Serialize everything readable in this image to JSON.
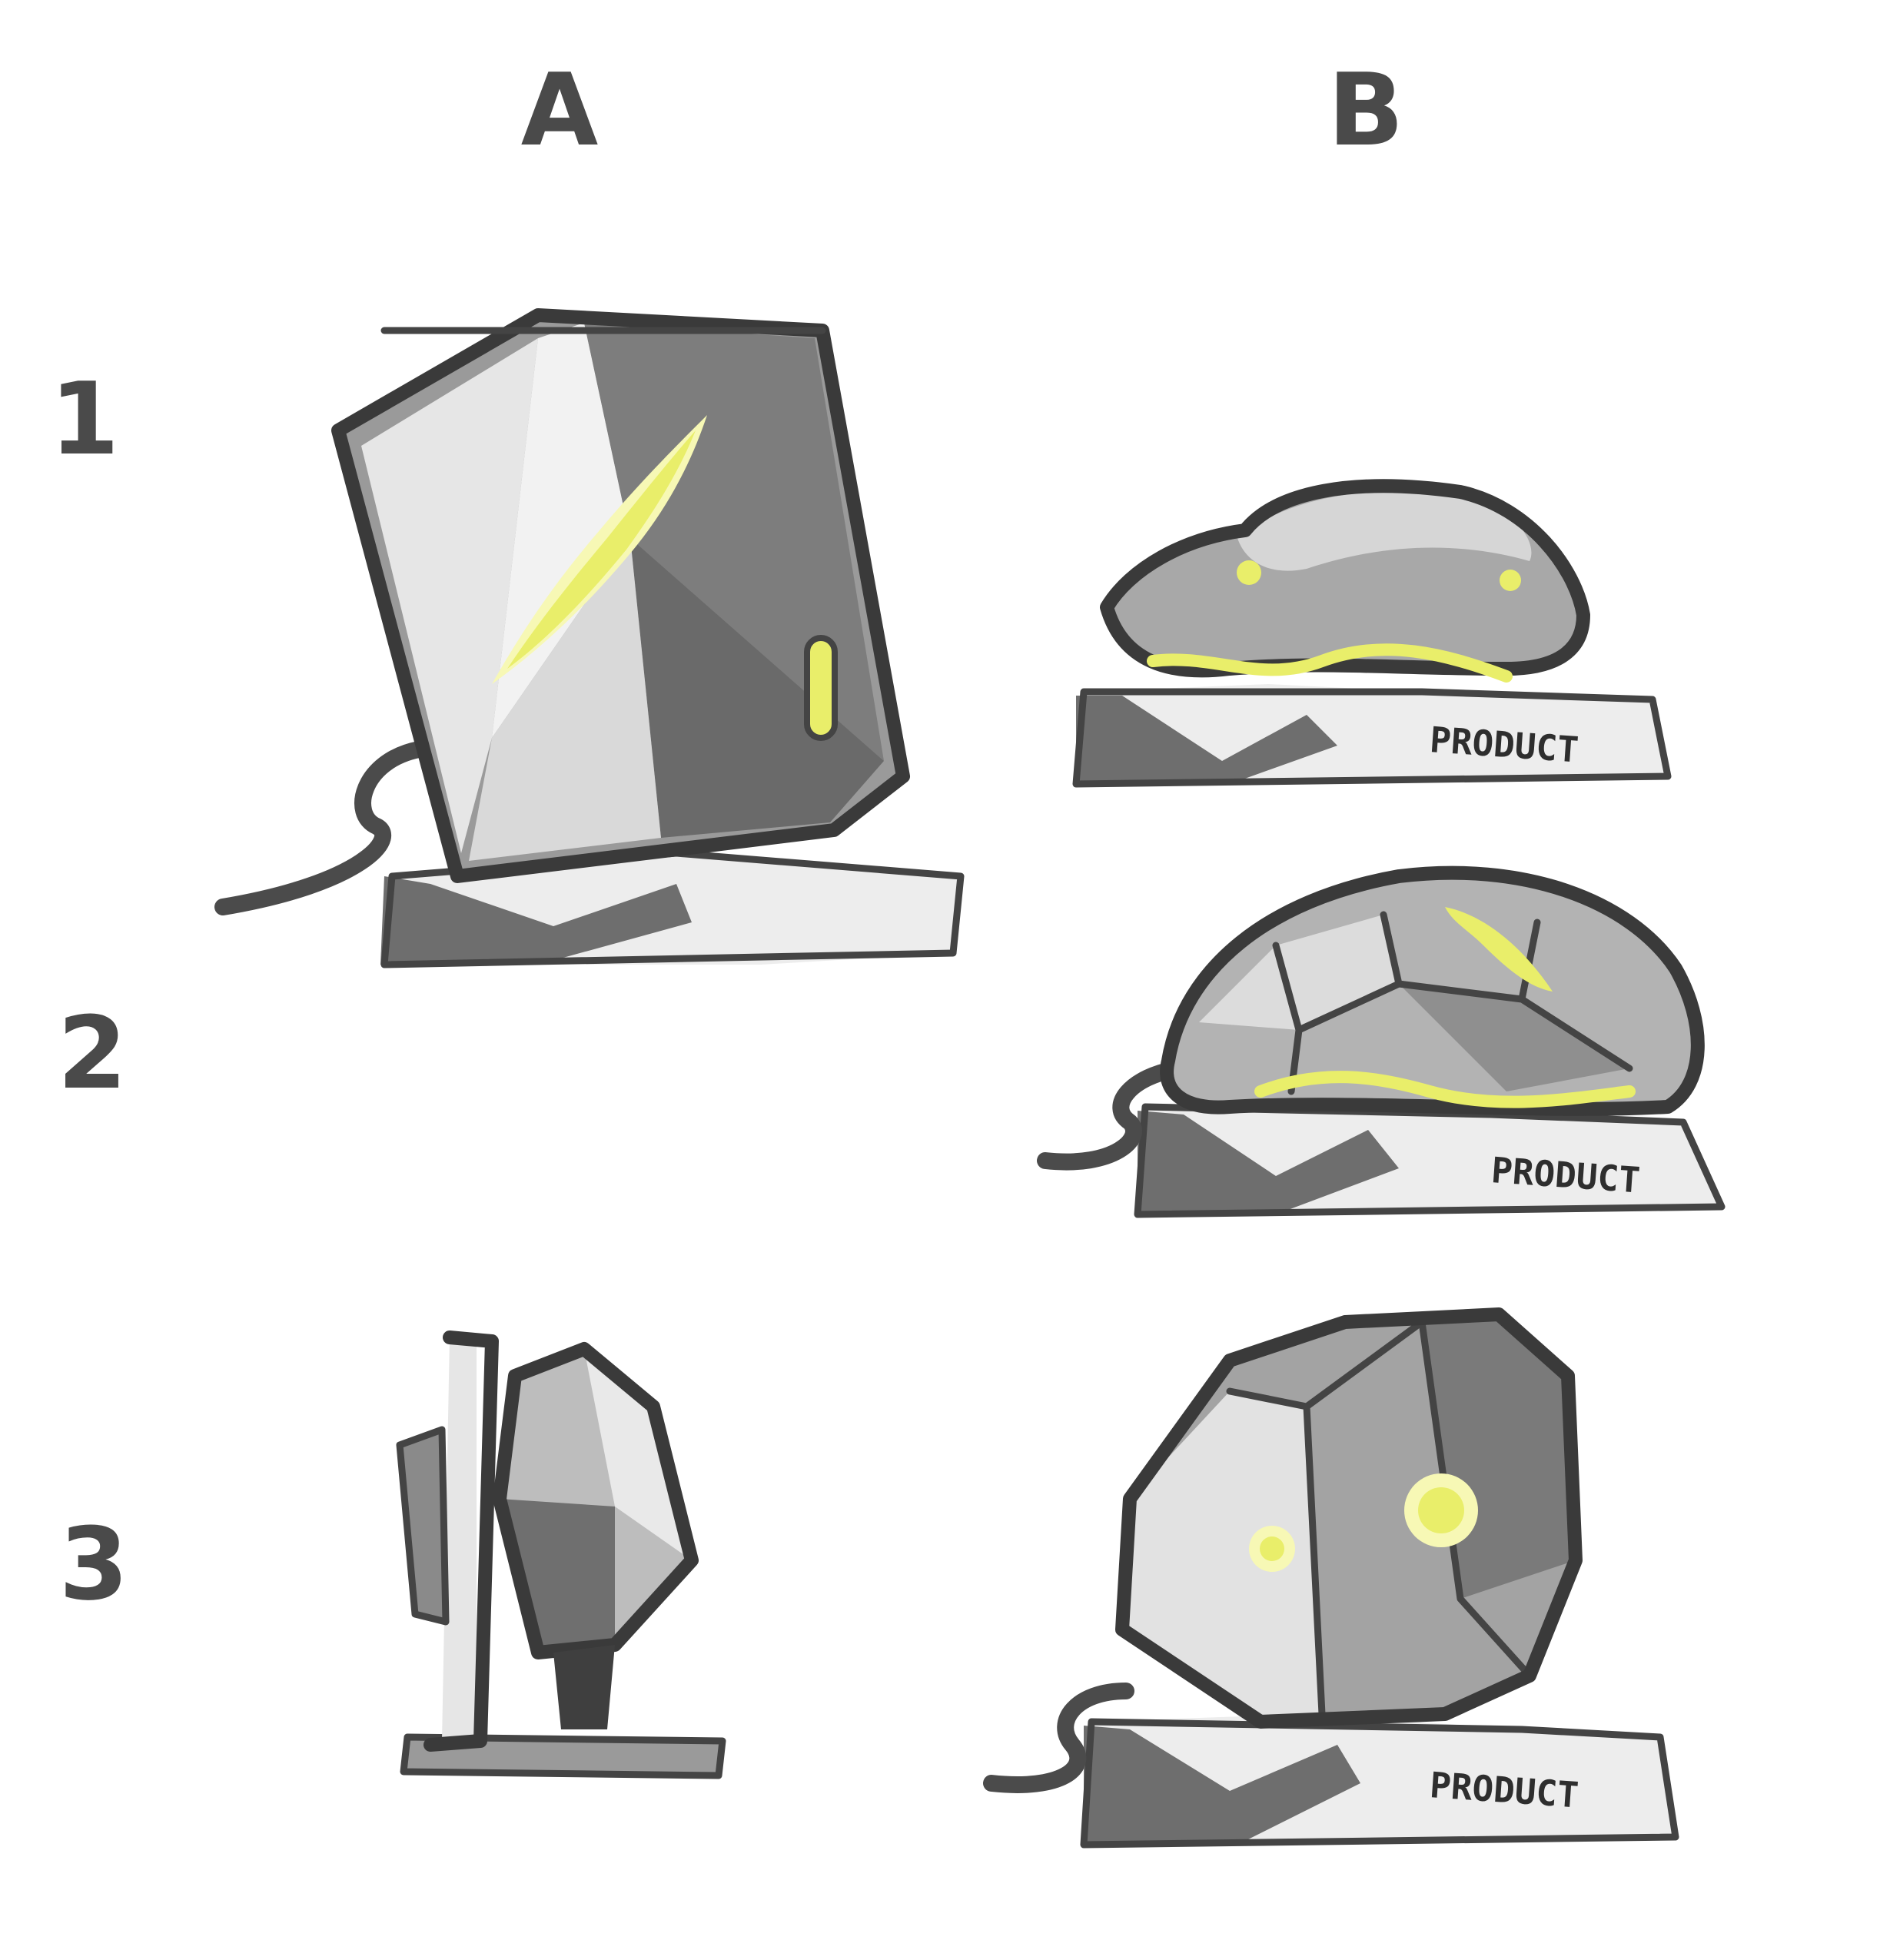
{
  "columns": [
    {
      "id": "A",
      "label": "A"
    },
    {
      "id": "B",
      "label": "B"
    }
  ],
  "rows": [
    {
      "id": "1",
      "label": "1"
    },
    {
      "id": "2",
      "label": "2"
    },
    {
      "id": "3",
      "label": "3"
    }
  ],
  "sketches": [
    {
      "cell": "A1",
      "subject": "faceted-monitor-on-stand",
      "accent_color": "#e9ee6a"
    },
    {
      "cell": "B1",
      "subject": "wave-mouse-on-base",
      "base_text": "PRODUCT",
      "accent_color": "#e9ee6a"
    },
    {
      "cell": "B2",
      "subject": "faceted-dome-mouse-on-base",
      "base_text": "PRODUCT",
      "accent_color": "#e9ee6a"
    },
    {
      "cell": "A3",
      "subject": "faceted-speaker-side-view"
    },
    {
      "cell": "B3",
      "subject": "faceted-box-on-base",
      "base_text": "PRODUCT",
      "accent_color": "#e9ee6a"
    }
  ],
  "palette": {
    "ink": "#3a3a3a",
    "mid_gray": "#8a8a8a",
    "light_gray": "#d6d6d6",
    "glow": "#e9ee6a"
  }
}
